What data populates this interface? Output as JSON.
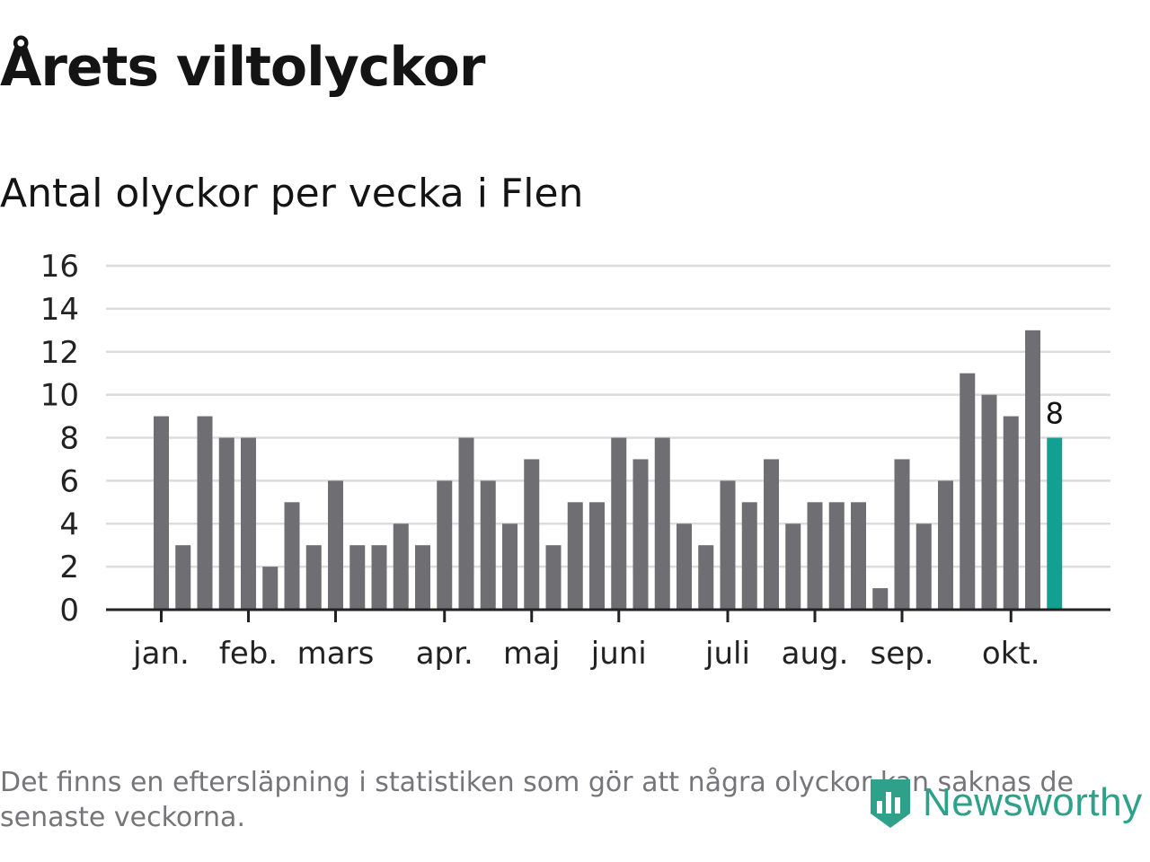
{
  "header": {
    "title": "Årets viltolyckor",
    "subtitle": "Antal olyckor per vecka i Flen"
  },
  "footnote": "Det finns en eftersläpning i statistiken som gör att några olyckor kan saknas de senaste veckorna.",
  "brand": {
    "name": "Newsworthy",
    "logo_icon": "newsworthy-logo-icon"
  },
  "colors": {
    "bar": "#6f6e73",
    "highlight": "#12a190",
    "grid": "#dcdcdc",
    "axis": "#222222",
    "brand": "#2fa089"
  },
  "chart_data": {
    "type": "bar",
    "title": "Antal olyckor per vecka i Flen",
    "xlabel": "",
    "ylabel": "",
    "ylim": [
      0,
      16
    ],
    "y_ticks": [
      0,
      2,
      4,
      6,
      8,
      10,
      12,
      14,
      16
    ],
    "grid": true,
    "values": [
      9,
      3,
      9,
      8,
      8,
      2,
      5,
      3,
      6,
      3,
      3,
      4,
      3,
      6,
      8,
      6,
      4,
      7,
      3,
      5,
      5,
      8,
      7,
      8,
      4,
      3,
      6,
      5,
      7,
      4,
      5,
      5,
      5,
      1,
      7,
      4,
      6,
      11,
      10,
      9,
      13,
      8
    ],
    "highlight_index": 41,
    "highlight_label": "8",
    "months": [
      {
        "label": "jan.",
        "week_index": 0
      },
      {
        "label": "feb.",
        "week_index": 4
      },
      {
        "label": "mars",
        "week_index": 8
      },
      {
        "label": "apr.",
        "week_index": 13
      },
      {
        "label": "maj",
        "week_index": 17
      },
      {
        "label": "juni",
        "week_index": 21
      },
      {
        "label": "juli",
        "week_index": 26
      },
      {
        "label": "aug.",
        "week_index": 30
      },
      {
        "label": "sep.",
        "week_index": 34
      },
      {
        "label": "okt.",
        "week_index": 39
      }
    ]
  }
}
